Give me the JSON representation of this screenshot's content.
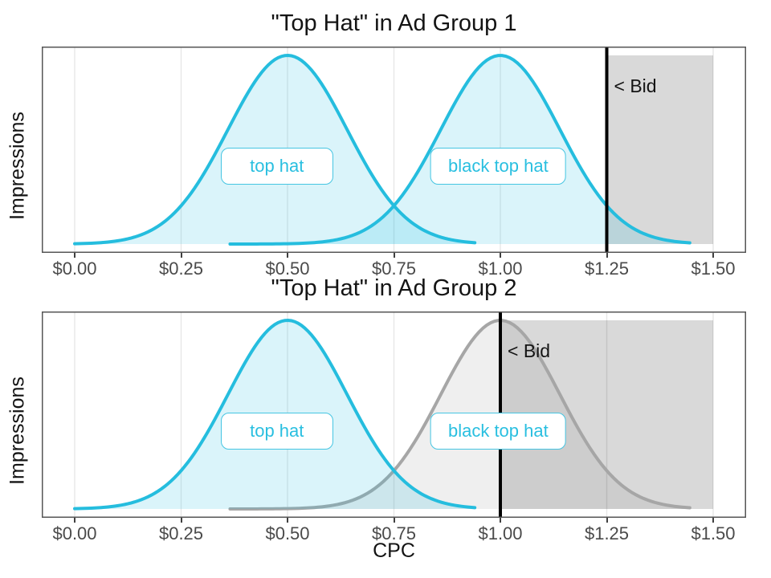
{
  "axis": {
    "x_label": "CPC",
    "y_label": "Impressions",
    "x_tick_labels": [
      "$0.00",
      "$0.25",
      "$0.50",
      "$0.75",
      "$1.00",
      "$1.25",
      "$1.50"
    ],
    "x_tick_values": [
      0,
      0.25,
      0.5,
      0.75,
      1.0,
      1.25,
      1.5
    ]
  },
  "colors": {
    "cyan_stroke": "#25bdde",
    "cyan_fill": "rgba(37,189,223,0.17)",
    "gray_stroke": "#a6a6a6",
    "gray_fill": "rgba(110,110,110,0.11)",
    "shade_fill": "rgba(0,0,0,0.15)",
    "bid_line": "#000000",
    "gridline": "#e7e7e7",
    "panel_border": "#565656",
    "tick_text": "#4a4a4a",
    "title_text": "#141414",
    "label_text": "#29bfe0"
  },
  "chart_data": [
    {
      "type": "area",
      "title": "\"Top Hat\" in Ad Group 1",
      "xlabel": "CPC",
      "ylabel": "Impressions",
      "xlim": [
        -0.08,
        1.58
      ],
      "grid": "vertical-major-only",
      "x_ticks": [
        "$0.00",
        "$0.25",
        "$0.50",
        "$0.75",
        "$1.00",
        "$1.25",
        "$1.50"
      ],
      "bid": {
        "value": 1.25,
        "label": "< Bid"
      },
      "shaded_region": {
        "from": 1.25,
        "to": 1.5
      },
      "series": [
        {
          "name": "top hat",
          "distribution": "normal",
          "mean": 0.5,
          "sd": 0.14,
          "range": [
            0.0,
            0.94
          ],
          "color": "cyan",
          "label_x": 0.475,
          "z": 1
        },
        {
          "name": "black top hat",
          "distribution": "normal",
          "mean": 1.0,
          "sd": 0.14,
          "range": [
            0.365,
            1.445
          ],
          "color": "cyan",
          "label_x": 0.995,
          "z": 2
        }
      ]
    },
    {
      "type": "area",
      "title": "\"Top Hat\" in Ad Group 2",
      "xlabel": "CPC",
      "ylabel": "Impressions",
      "xlim": [
        -0.08,
        1.58
      ],
      "grid": "vertical-major-only",
      "x_ticks": [
        "$0.00",
        "$0.25",
        "$0.50",
        "$0.75",
        "$1.00",
        "$1.25",
        "$1.50"
      ],
      "bid": {
        "value": 1.0,
        "label": "< Bid"
      },
      "shaded_region": {
        "from": 1.0,
        "to": 1.5
      },
      "series": [
        {
          "name": "black top hat",
          "distribution": "normal",
          "mean": 1.0,
          "sd": 0.14,
          "range": [
            0.365,
            1.445
          ],
          "color": "gray",
          "label_x": 0.995,
          "z": 1
        },
        {
          "name": "top hat",
          "distribution": "normal",
          "mean": 0.5,
          "sd": 0.14,
          "range": [
            0.0,
            0.94
          ],
          "color": "cyan",
          "label_x": 0.475,
          "z": 2
        }
      ]
    }
  ]
}
